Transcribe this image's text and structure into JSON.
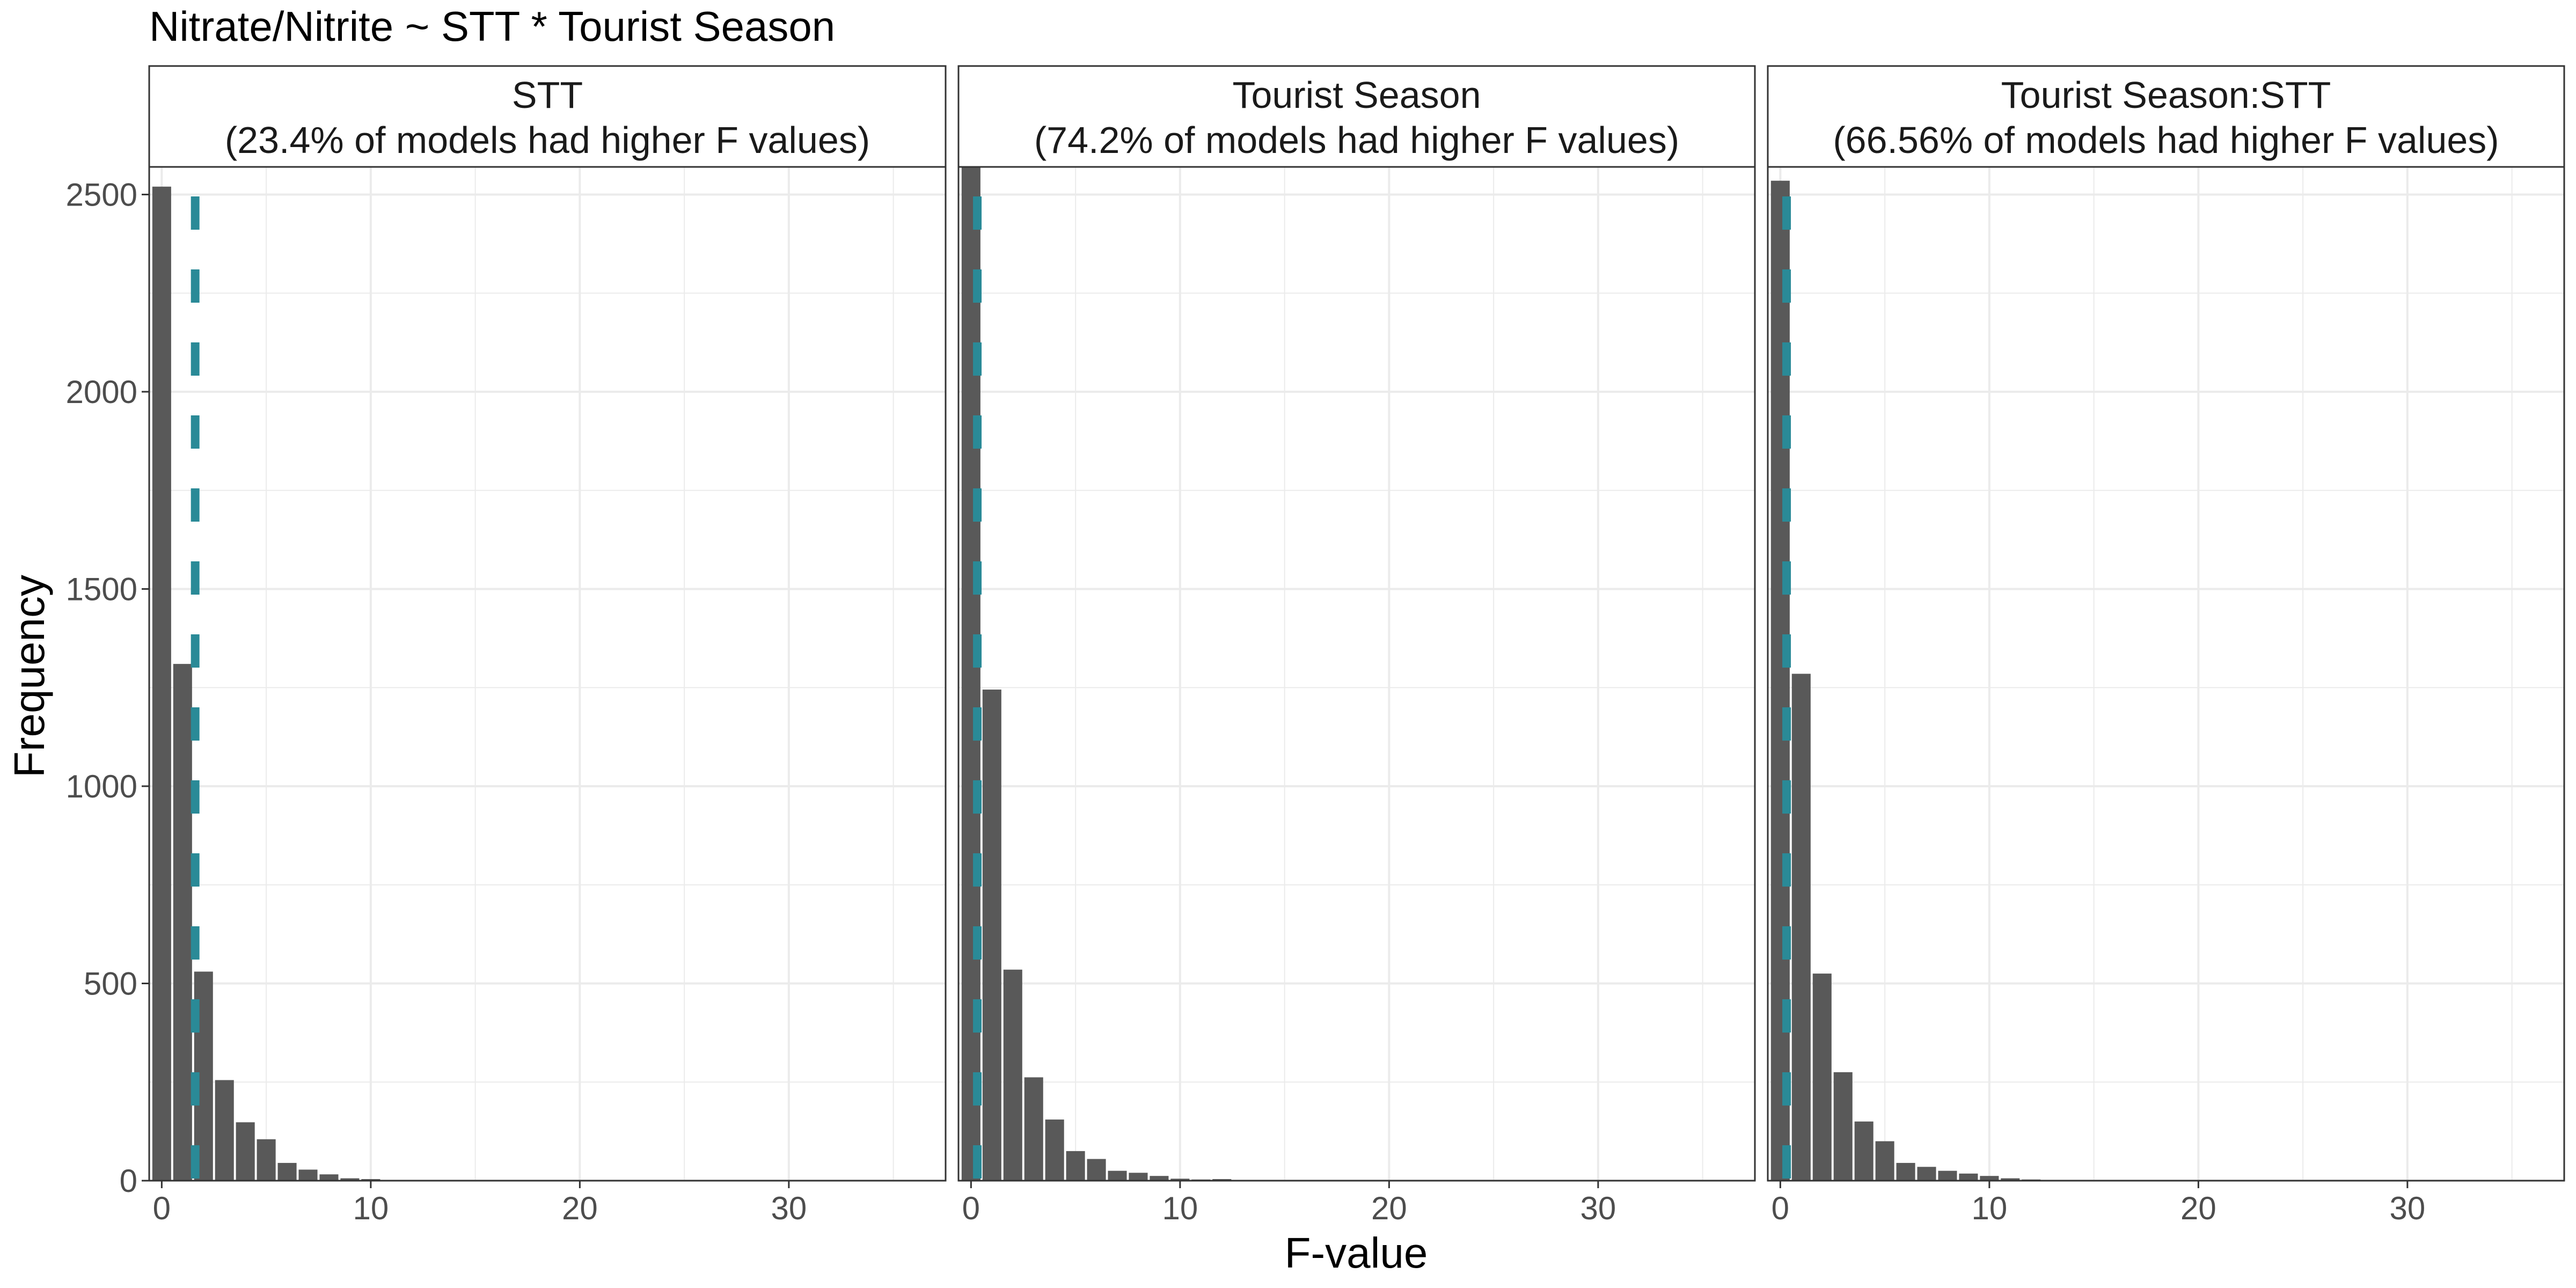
{
  "chart_data": {
    "type": "bar",
    "title": "Nitrate/Nitrite ~ STT * Tourist Season",
    "xlabel": "F-value",
    "ylabel": "Frequency",
    "xlim": [
      -0.6,
      37.5
    ],
    "ylim": [
      0,
      2570
    ],
    "x_ticks": [
      0,
      10,
      20,
      30
    ],
    "y_ticks": [
      0,
      500,
      1000,
      1500,
      2000,
      2500
    ],
    "grid": true,
    "bin_width": 1,
    "colors": {
      "bars": "#595959",
      "observed_line": "#2a8a97",
      "grid": "#ebebeb",
      "strip_border": "#333333"
    },
    "panels": [
      {
        "strip_line1": "STT",
        "strip_line2": "(23.4% of models had higher F values)",
        "observed_f": 1.6,
        "bins": [
          0,
          1,
          2,
          3,
          4,
          5,
          6,
          7,
          8,
          9,
          10,
          11,
          12,
          13,
          14,
          15,
          16,
          17,
          18,
          19,
          20,
          21,
          22,
          23,
          24,
          25,
          26,
          27,
          28,
          29,
          30,
          31,
          32,
          33,
          34,
          35,
          36,
          37
        ],
        "counts": [
          2520,
          1310,
          530,
          255,
          148,
          105,
          45,
          28,
          16,
          6,
          4,
          2,
          1,
          1,
          1,
          1,
          0,
          0,
          0,
          0,
          0,
          0,
          0,
          0,
          0,
          0,
          0,
          0,
          0,
          0,
          0,
          0,
          0,
          0,
          0,
          0,
          0,
          0
        ]
      },
      {
        "strip_line1": "Tourist Season",
        "strip_line2": "(74.2% of models had higher F values)",
        "observed_f": 0.3,
        "bins": [
          0,
          1,
          2,
          3,
          4,
          5,
          6,
          7,
          8,
          9,
          10,
          11,
          12,
          13,
          14,
          15,
          16,
          17,
          18,
          19,
          20,
          21,
          22,
          23,
          24,
          25,
          26,
          27,
          28,
          29,
          30,
          31,
          32,
          33,
          34,
          35,
          36,
          37
        ],
        "counts": [
          2570,
          1245,
          535,
          262,
          155,
          75,
          55,
          25,
          20,
          12,
          5,
          3,
          4,
          1,
          1,
          0,
          0,
          0,
          0,
          0,
          0,
          0,
          0,
          0,
          0,
          0,
          0,
          0,
          0,
          0,
          0,
          0,
          0,
          0,
          0,
          0,
          0,
          0
        ]
      },
      {
        "strip_line1": "Tourist Season:STT",
        "strip_line2": "(66.56% of models had higher F values)",
        "observed_f": 0.3,
        "bins": [
          0,
          1,
          2,
          3,
          4,
          5,
          6,
          7,
          8,
          9,
          10,
          11,
          12,
          13,
          14,
          15,
          16,
          17,
          18,
          19,
          20,
          21,
          22,
          23,
          24,
          25,
          26,
          27,
          28,
          29,
          30,
          31,
          32,
          33,
          34,
          35,
          36,
          37
        ],
        "counts": [
          2535,
          1285,
          525,
          275,
          150,
          100,
          45,
          35,
          25,
          18,
          12,
          6,
          3,
          2,
          1,
          0,
          0,
          0,
          0,
          0,
          0,
          0,
          0,
          0,
          0,
          0,
          0,
          0,
          0,
          0,
          0,
          0,
          0,
          0,
          0,
          0,
          0,
          0
        ]
      }
    ]
  }
}
